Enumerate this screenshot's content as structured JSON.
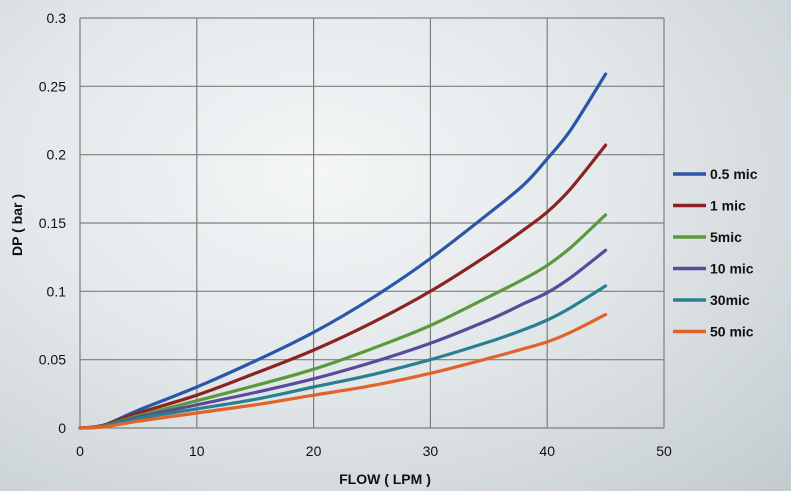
{
  "chart_data": {
    "type": "line",
    "title": "",
    "xlabel": "FLOW ( LPM )",
    "ylabel": "DP ( bar )",
    "xlim": [
      0,
      50
    ],
    "ylim": [
      0,
      0.3
    ],
    "xticks": [
      0,
      10,
      20,
      30,
      40,
      50
    ],
    "yticks": [
      0,
      0.05,
      0.1,
      0.15,
      0.2,
      0.25,
      0.3
    ],
    "xtick_labels": [
      "0",
      "10",
      "20",
      "30",
      "40",
      "50"
    ],
    "ytick_labels": [
      "0",
      "0.05",
      "0.1",
      "0.15",
      "0.2",
      "0.25",
      "0.3"
    ],
    "grid": true,
    "legend": "right",
    "series": [
      {
        "name": "0.5 mic",
        "color": "#2a57a6",
        "x": [
          0,
          2,
          5,
          10,
          15,
          20,
          25,
          30,
          35,
          38,
          40,
          42,
          45
        ],
        "y": [
          0,
          0.002,
          0.013,
          0.03,
          0.049,
          0.07,
          0.095,
          0.124,
          0.157,
          0.178,
          0.197,
          0.218,
          0.259
        ]
      },
      {
        "name": "1 mic",
        "color": "#8b2323",
        "x": [
          0,
          2,
          5,
          10,
          15,
          20,
          25,
          30,
          35,
          38,
          40,
          42,
          45
        ],
        "y": [
          0,
          0.002,
          0.011,
          0.024,
          0.04,
          0.057,
          0.077,
          0.1,
          0.127,
          0.145,
          0.158,
          0.175,
          0.207
        ]
      },
      {
        "name": "5mic",
        "color": "#5b9a3c",
        "x": [
          0,
          2,
          5,
          10,
          15,
          20,
          25,
          30,
          35,
          38,
          40,
          42,
          45
        ],
        "y": [
          0,
          0.0015,
          0.009,
          0.02,
          0.031,
          0.043,
          0.058,
          0.075,
          0.096,
          0.109,
          0.119,
          0.132,
          0.156
        ]
      },
      {
        "name": "10 mic",
        "color": "#5a4a9a",
        "x": [
          0,
          2,
          5,
          10,
          15,
          20,
          25,
          30,
          35,
          38,
          40,
          42,
          45
        ],
        "y": [
          0,
          0.0012,
          0.008,
          0.017,
          0.026,
          0.036,
          0.048,
          0.062,
          0.079,
          0.091,
          0.099,
          0.11,
          0.13
        ]
      },
      {
        "name": "30mic",
        "color": "#2a8090",
        "x": [
          0,
          2,
          5,
          10,
          15,
          20,
          25,
          30,
          35,
          38,
          40,
          42,
          45
        ],
        "y": [
          0,
          0.001,
          0.007,
          0.014,
          0.021,
          0.03,
          0.039,
          0.05,
          0.063,
          0.072,
          0.079,
          0.088,
          0.104
        ]
      },
      {
        "name": "50 mic",
        "color": "#e0632a",
        "x": [
          0,
          2,
          5,
          10,
          15,
          20,
          25,
          30,
          35,
          38,
          40,
          42,
          45
        ],
        "y": [
          0,
          0.0008,
          0.005,
          0.011,
          0.017,
          0.024,
          0.031,
          0.04,
          0.051,
          0.058,
          0.063,
          0.07,
          0.083
        ]
      }
    ]
  }
}
